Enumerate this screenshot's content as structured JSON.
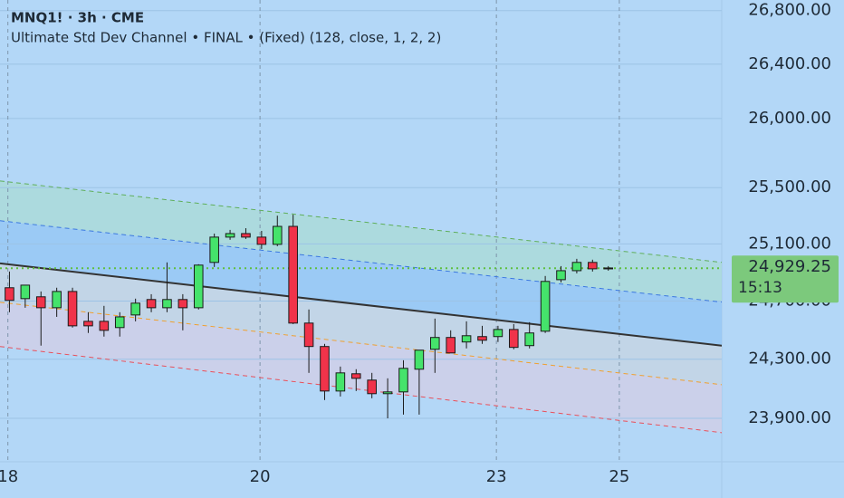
{
  "chart_data": {
    "type": "candlestick",
    "title": "MNQ1! · 3h · CME",
    "subtitle": "Ultimate Std Dev Channel • FINAL •  (Fixed) (128, close, 1, 2, 2)",
    "log_scale": true,
    "grid": true,
    "up_color": "#45e36b",
    "down_color": "#f0334a",
    "open": [
      24793,
      24717,
      24730,
      24654,
      24767,
      24560,
      24560,
      24517,
      24604,
      24711,
      24654,
      24711,
      24654,
      24970,
      25148,
      25173,
      25148,
      25097,
      25224,
      24548,
      24387,
      24084,
      24201,
      24158,
      24066,
      24078,
      24232,
      24368,
      24449,
      24418,
      24455,
      24455,
      24504,
      24393,
      24492,
      24849,
      24912,
      24970,
      24931
    ],
    "high": [
      24906,
      24811,
      24767,
      24793,
      24793,
      24623,
      24667,
      24623,
      24717,
      24748,
      24970,
      24748,
      24957,
      25173,
      25199,
      25211,
      25192,
      25300,
      25307,
      24642,
      24405,
      24250,
      24232,
      24207,
      24170,
      24293,
      24362,
      24579,
      24498,
      24560,
      24529,
      24529,
      24541,
      24554,
      24875,
      24944,
      24995,
      24989,
      24944
    ],
    "low": [
      24623,
      24654,
      24393,
      24591,
      24517,
      24480,
      24455,
      24455,
      24560,
      24623,
      24623,
      24498,
      24642,
      24938,
      25129,
      25135,
      25065,
      25084,
      24541,
      24207,
      24023,
      24047,
      24084,
      24035,
      23900,
      23925,
      23925,
      24207,
      24343,
      24374,
      24405,
      24418,
      24368,
      24374,
      24480,
      24830,
      24893,
      24906,
      24912
    ],
    "close": [
      24705,
      24811,
      24654,
      24767,
      24529,
      24529,
      24498,
      24591,
      24686,
      24654,
      24711,
      24654,
      24951,
      25148,
      25173,
      25148,
      25097,
      25224,
      24548,
      24387,
      24084,
      24207,
      24170,
      24066,
      24078,
      24238,
      24362,
      24449,
      24343,
      24461,
      24430,
      24504,
      24381,
      24480,
      24837,
      24912,
      24970,
      24925,
      24925
    ],
    "xlim": [
      -0.6,
      45.2
    ],
    "xticks": [
      {
        "value": -0.1,
        "label": "18"
      },
      {
        "value": 15.9,
        "label": "20"
      },
      {
        "value": 30.9,
        "label": "23"
      },
      {
        "value": 38.7,
        "label": "25"
      }
    ],
    "ylim": [
      23610,
      26880
    ],
    "yticks": [
      {
        "value": 26800,
        "label": "26,800.00"
      },
      {
        "value": 26400,
        "label": "26,400.00"
      },
      {
        "value": 26000,
        "label": "26,000.00"
      },
      {
        "value": 25500,
        "label": "25,500.00"
      },
      {
        "value": 25100,
        "label": "25,100.00"
      },
      {
        "value": 24700,
        "label": "24,700.00"
      },
      {
        "value": 24300,
        "label": "24,300.00"
      },
      {
        "value": 23900,
        "label": "23,900.00"
      }
    ],
    "channel": [
      {
        "color": "#5fae5a",
        "dash": true,
        "values": [
          25548,
          24970
        ]
      },
      {
        "color": "#3b78e0",
        "dash": true,
        "values": [
          25264,
          24693
        ]
      },
      {
        "color": "#333333",
        "dash": false,
        "values": [
          24963,
          24393
        ]
      },
      {
        "color": "#f0a030",
        "dash": true,
        "values": [
          24692,
          24127
        ]
      },
      {
        "color": "#e8505a",
        "dash": true,
        "values": [
          24387,
          23804
        ]
      }
    ],
    "channel_fills": [
      "#a9dbd6",
      "#93c6f4",
      "#c7d4e2",
      "#d3cde6"
    ],
    "last_price": 24929.25,
    "last_price_label": "24,929.25",
    "last_price_color": "#7cc97c",
    "countdown": "15:13"
  }
}
